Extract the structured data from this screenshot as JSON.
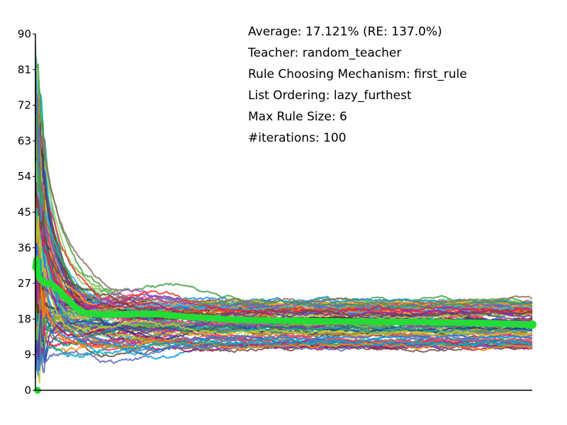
{
  "chart_data": {
    "type": "line",
    "title": "",
    "xlabel": "",
    "ylabel": "",
    "ylim": [
      0,
      90
    ],
    "xlim": [
      0,
      100
    ],
    "yticks": [
      0,
      9,
      18,
      27,
      36,
      45,
      54,
      63,
      72,
      81,
      90
    ],
    "grid": false,
    "legend": "none",
    "annotations": [
      "Average: 17.121% (RE: 137.0%)",
      "Teacher: random_teacher",
      "Rule Choosing Mechanism: first_rule",
      "List Ordering: lazy_furthest",
      "Max Rule Size: 6",
      "#iterations: 100"
    ],
    "average_series": {
      "color": "#22dd33",
      "x": [
        0,
        0.2,
        0.5,
        1,
        2,
        3,
        4,
        5,
        6,
        8,
        10,
        12,
        15,
        20,
        25,
        30,
        35,
        40,
        50,
        60,
        70,
        80,
        90,
        95,
        100
      ],
      "values": [
        31,
        33,
        29,
        28,
        27,
        27,
        26,
        25,
        23.5,
        21,
        19.5,
        19.3,
        19.1,
        19.3,
        19.2,
        18.6,
        18.2,
        17.8,
        17.6,
        17.4,
        17.3,
        17.2,
        17.0,
        16.8,
        16.6
      ]
    },
    "runs": {
      "count": 100,
      "colors": [
        "#e53935",
        "#1e88e5",
        "#43a047",
        "#8e24aa",
        "#fb8c00",
        "#00acc1",
        "#d81b60",
        "#6d4c41",
        "#3949ab",
        "#c0ca33",
        "#00897b",
        "#5e35b1",
        "#f4511e",
        "#7cb342",
        "#039be5",
        "#ad1457",
        "#283593",
        "#9e9d24",
        "#4e342e",
        "#26a69a",
        "#ef5350",
        "#ab47bc",
        "#66bb6a",
        "#ffa726",
        "#5c6bc0",
        "#ec407a",
        "#8d6e63",
        "#29b6f6",
        "#9ccc65",
        "#7e57c2"
      ],
      "initial_range": [
        5,
        86
      ],
      "final_range": [
        10.5,
        23
      ]
    }
  }
}
